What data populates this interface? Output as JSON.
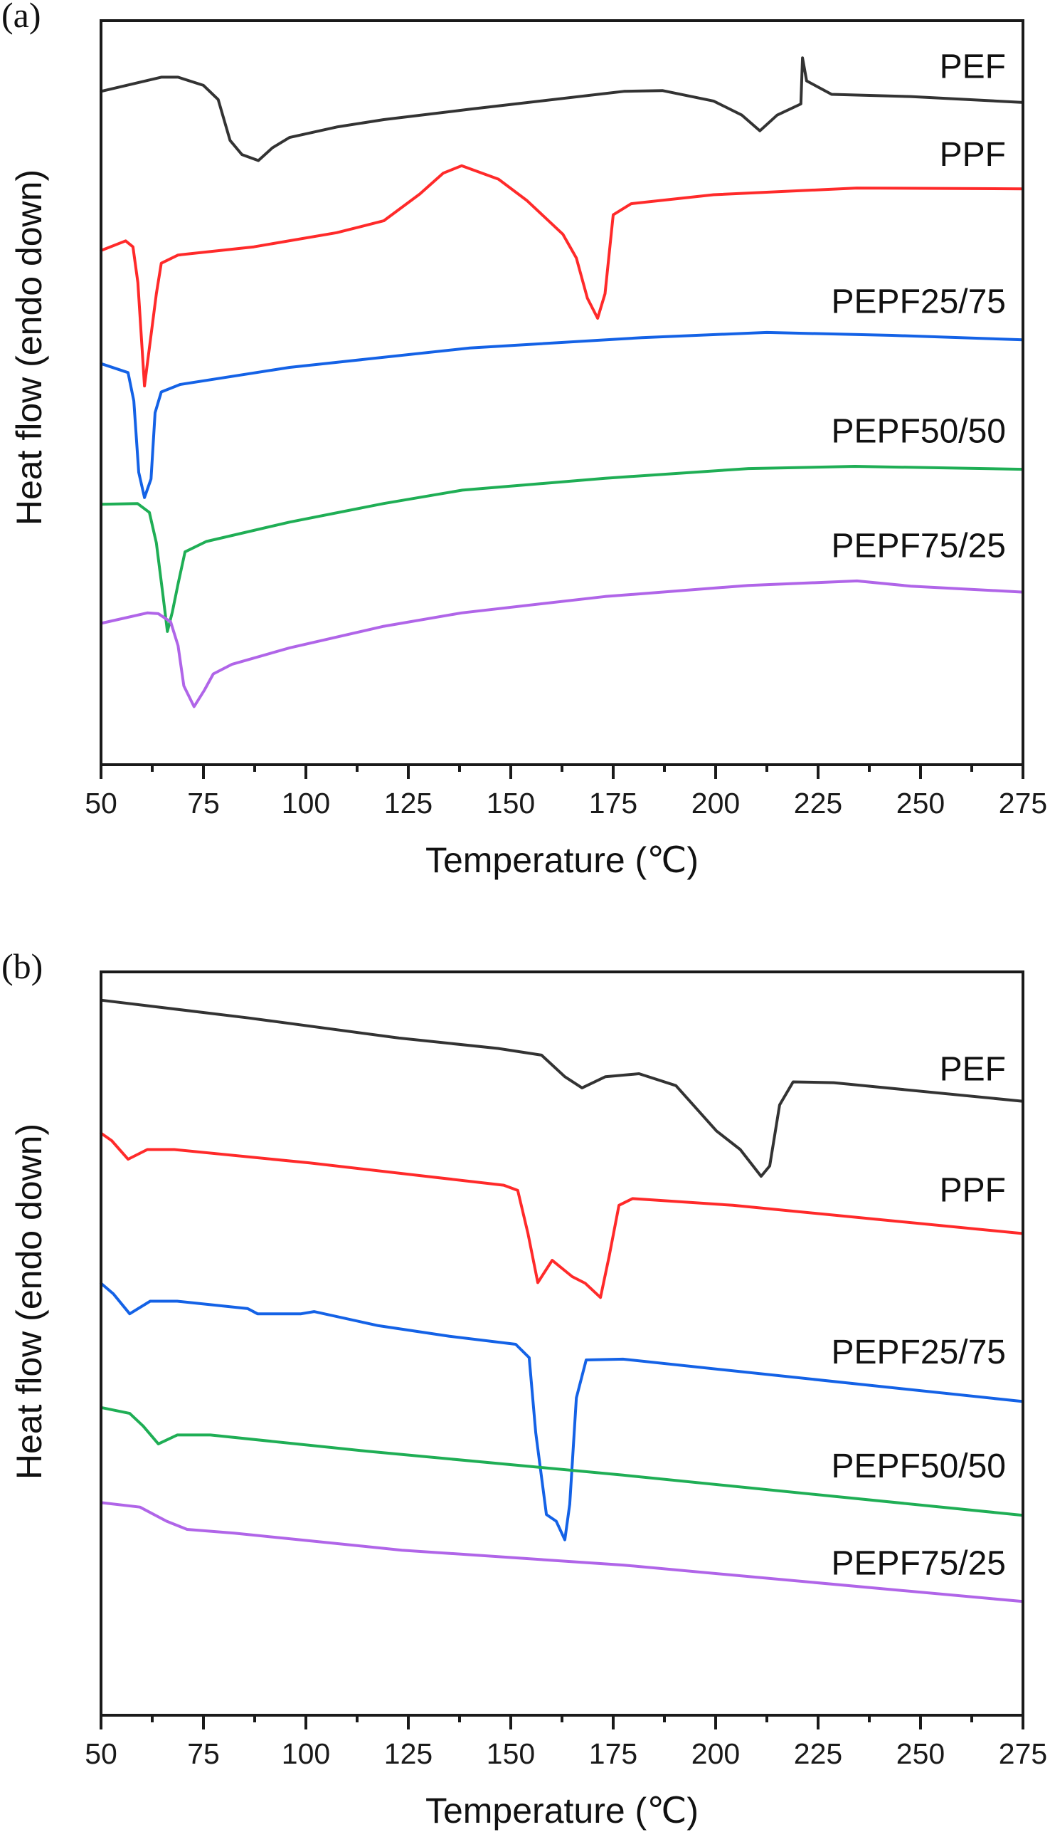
{
  "chart_data": [
    {
      "type": "line",
      "panel_label": "(a)",
      "title": "",
      "xlabel": "Temperature (℃)",
      "ylabel": "Heat flow (endo down)",
      "xlim": [
        50,
        275
      ],
      "ylim": [
        0,
        100
      ],
      "y_units": "arbitrary (offset curves, no y ticks)",
      "xticks": [
        50,
        75,
        100,
        125,
        150,
        175,
        200,
        225,
        250,
        275
      ],
      "xtick_labels": [
        "50",
        "75",
        "100",
        "125",
        "150",
        "175",
        "200",
        "225",
        "250",
        "275"
      ],
      "grid": false,
      "legend": "inline labels at right",
      "series": [
        {
          "name": "PEF",
          "color": "#333333",
          "points": [
            [
              50,
              90.5
            ],
            [
              64.7,
              92.4
            ],
            [
              68.8,
              92.4
            ],
            [
              75,
              91.3
            ],
            [
              78.6,
              89.4
            ],
            [
              81.5,
              83.9
            ],
            [
              84.4,
              82.0
            ],
            [
              88.4,
              81.2
            ],
            [
              91.8,
              82.9
            ],
            [
              96,
              84.3
            ],
            [
              107.5,
              85.7
            ],
            [
              119,
              86.7
            ],
            [
              140,
              88.1
            ],
            [
              177.6,
              90.5
            ],
            [
              187,
              90.6
            ],
            [
              199.5,
              89.2
            ],
            [
              206.4,
              87.3
            ],
            [
              210.8,
              85.2
            ],
            [
              215,
              87.3
            ],
            [
              220.8,
              88.8
            ],
            [
              221.2,
              95.0
            ],
            [
              222.2,
              91.9
            ],
            [
              228.3,
              90.1
            ],
            [
              247.6,
              89.8
            ],
            [
              275,
              89.0
            ]
          ]
        },
        {
          "name": "PPF",
          "color": "#ff2a2a",
          "points": [
            [
              50,
              69.1
            ],
            [
              56,
              70.4
            ],
            [
              57.8,
              69.6
            ],
            [
              59,
              64.8
            ],
            [
              60.6,
              50.9
            ],
            [
              63.5,
              63.3
            ],
            [
              64.7,
              67.4
            ],
            [
              68.8,
              68.5
            ],
            [
              87.3,
              69.6
            ],
            [
              107.5,
              71.5
            ],
            [
              119,
              73.1
            ],
            [
              127.8,
              76.7
            ],
            [
              133.5,
              79.5
            ],
            [
              138,
              80.5
            ],
            [
              147,
              78.7
            ],
            [
              154,
              75.8
            ],
            [
              162.7,
              71.3
            ],
            [
              166,
              68.1
            ],
            [
              168.7,
              62.7
            ],
            [
              171.2,
              60.0
            ],
            [
              173,
              63.3
            ],
            [
              175,
              73.9
            ],
            [
              179.4,
              75.4
            ],
            [
              199.5,
              76.6
            ],
            [
              234.4,
              77.5
            ],
            [
              275,
              77.4
            ]
          ]
        },
        {
          "name": "PEPF25/75",
          "color": "#1462e6",
          "points": [
            [
              50,
              53.9
            ],
            [
              56.6,
              52.7
            ],
            [
              58,
              48.9
            ],
            [
              59.2,
              39.3
            ],
            [
              60.6,
              35.9
            ],
            [
              62.2,
              38.4
            ],
            [
              63.2,
              47.3
            ],
            [
              64.7,
              50.1
            ],
            [
              69.3,
              51.1
            ],
            [
              96,
              53.4
            ],
            [
              140,
              56.0
            ],
            [
              182,
              57.4
            ],
            [
              212.5,
              58.1
            ],
            [
              243,
              57.7
            ],
            [
              275,
              57.1
            ]
          ]
        },
        {
          "name": "PEPF50/50",
          "color": "#1fae55",
          "points": [
            [
              50,
              35.0
            ],
            [
              58.9,
              35.1
            ],
            [
              61.8,
              33.9
            ],
            [
              63.5,
              29.8
            ],
            [
              65,
              23.3
            ],
            [
              66.2,
              17.9
            ],
            [
              67.4,
              20.5
            ],
            [
              68.8,
              24.3
            ],
            [
              70.5,
              28.6
            ],
            [
              75.7,
              30.0
            ],
            [
              96,
              32.6
            ],
            [
              119,
              35.1
            ],
            [
              138.2,
              36.9
            ],
            [
              173,
              38.5
            ],
            [
              208,
              39.8
            ],
            [
              234,
              40.1
            ],
            [
              275,
              39.7
            ]
          ]
        },
        {
          "name": "PEPF75/25",
          "color": "#b065e8",
          "points": [
            [
              50,
              19.0
            ],
            [
              61.3,
              20.4
            ],
            [
              64,
              20.3
            ],
            [
              67,
              19.2
            ],
            [
              68.8,
              16.0
            ],
            [
              70.2,
              10.6
            ],
            [
              72.7,
              7.8
            ],
            [
              75.2,
              10.0
            ],
            [
              77.4,
              12.2
            ],
            [
              82,
              13.5
            ],
            [
              96,
              15.7
            ],
            [
              119,
              18.6
            ],
            [
              138,
              20.4
            ],
            [
              173,
              22.6
            ],
            [
              208,
              24.1
            ],
            [
              234.5,
              24.7
            ],
            [
              247.6,
              24.0
            ],
            [
              275,
              23.2
            ]
          ]
        }
      ]
    },
    {
      "type": "line",
      "panel_label": "(b)",
      "title": "",
      "xlabel": "Temperature (℃)",
      "ylabel": "Heat flow (endo down)",
      "xlim": [
        50,
        275
      ],
      "ylim": [
        0,
        100
      ],
      "y_units": "arbitrary (offset curves, no y ticks)",
      "xticks": [
        50,
        75,
        100,
        125,
        150,
        175,
        200,
        225,
        250,
        275
      ],
      "xtick_labels": [
        "50",
        "75",
        "100",
        "125",
        "150",
        "175",
        "200",
        "225",
        "250",
        "275"
      ],
      "grid": false,
      "legend": "inline labels at right",
      "series": [
        {
          "name": "PEF",
          "color": "#333333",
          "points": [
            [
              50,
              96.2
            ],
            [
              86,
              93.8
            ],
            [
              122.7,
              91.1
            ],
            [
              146.9,
              89.7
            ],
            [
              157.5,
              88.8
            ],
            [
              163.2,
              85.9
            ],
            [
              167.4,
              84.4
            ],
            [
              173.1,
              85.9
            ],
            [
              181.3,
              86.3
            ],
            [
              190.3,
              84.7
            ],
            [
              200.2,
              78.6
            ],
            [
              206,
              76.1
            ],
            [
              211.1,
              72.5
            ],
            [
              213.2,
              73.9
            ],
            [
              215.6,
              82.1
            ],
            [
              218.9,
              85.2
            ],
            [
              228.8,
              85.1
            ],
            [
              275,
              82.6
            ]
          ]
        },
        {
          "name": "PPF",
          "color": "#ff2a2a",
          "points": [
            [
              50,
              78.3
            ],
            [
              52.6,
              77.3
            ],
            [
              56.6,
              74.8
            ],
            [
              61.3,
              76.1
            ],
            [
              67.9,
              76.1
            ],
            [
              100.9,
              74.3
            ],
            [
              148.3,
              71.3
            ],
            [
              151.7,
              70.6
            ],
            [
              154.2,
              64.8
            ],
            [
              156.6,
              58.2
            ],
            [
              160.1,
              61.2
            ],
            [
              165,
              59.0
            ],
            [
              168.2,
              58.1
            ],
            [
              171.9,
              56.2
            ],
            [
              174,
              61.7
            ],
            [
              176.4,
              68.6
            ],
            [
              179.7,
              69.5
            ],
            [
              204.2,
              68.6
            ],
            [
              275,
              64.8
            ]
          ]
        },
        {
          "name": "PEPF25/75",
          "color": "#1462e6",
          "points": [
            [
              50,
              58.1
            ],
            [
              53,
              56.7
            ],
            [
              57,
              54.0
            ],
            [
              62,
              55.7
            ],
            [
              68.6,
              55.7
            ],
            [
              85.8,
              54.7
            ],
            [
              88.2,
              54.0
            ],
            [
              98.8,
              54.0
            ],
            [
              102,
              54.3
            ],
            [
              117.7,
              52.4
            ],
            [
              134.9,
              51.0
            ],
            [
              151.2,
              49.9
            ],
            [
              154.5,
              48.1
            ],
            [
              156.1,
              38.0
            ],
            [
              158.7,
              27.0
            ],
            [
              161.1,
              26.1
            ],
            [
              163.2,
              23.6
            ],
            [
              164.4,
              28.4
            ],
            [
              166,
              42.7
            ],
            [
              168.4,
              47.8
            ],
            [
              177.4,
              47.9
            ],
            [
              275,
              42.2
            ]
          ]
        },
        {
          "name": "PEPF50/50",
          "color": "#1fae55",
          "points": [
            [
              50,
              41.4
            ],
            [
              57,
              40.6
            ],
            [
              60.3,
              38.9
            ],
            [
              64,
              36.5
            ],
            [
              68.6,
              37.7
            ],
            [
              76.7,
              37.7
            ],
            [
              115.3,
              35.5
            ],
            [
              177.4,
              32.3
            ],
            [
              275,
              26.9
            ]
          ]
        },
        {
          "name": "PEPF75/25",
          "color": "#b065e8",
          "points": [
            [
              50,
              28.6
            ],
            [
              59.5,
              28.0
            ],
            [
              66,
              26.1
            ],
            [
              71,
              25.0
            ],
            [
              82.5,
              24.5
            ],
            [
              123.4,
              22.2
            ],
            [
              177.4,
              20.2
            ],
            [
              275,
              15.3
            ]
          ]
        }
      ]
    }
  ]
}
